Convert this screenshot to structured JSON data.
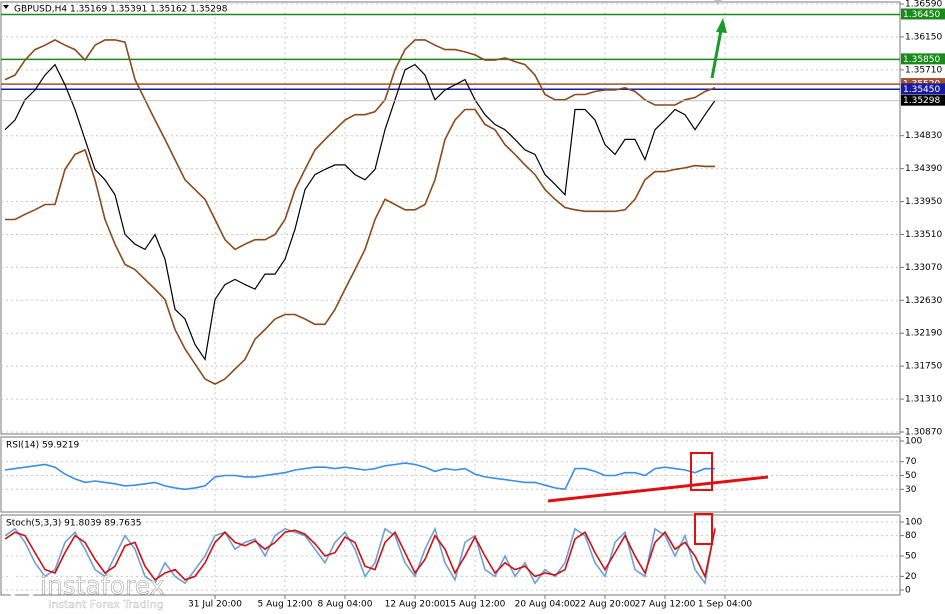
{
  "chart_data": [
    {
      "type": "line",
      "title": "GBPUSD,H4 1.35169 1.35391 1.35162 1.35298",
      "categories": [
        null,
        null,
        null,
        null,
        null,
        null,
        null,
        null,
        null,
        null,
        null,
        null,
        null,
        null,
        null,
        null,
        null,
        null,
        null,
        null,
        null,
        "31 Jul 20:00",
        null,
        null,
        null,
        null,
        null,
        null,
        "5 Aug 12:00",
        null,
        null,
        null,
        null,
        null,
        "8 Aug 04:00",
        null,
        null,
        null,
        null,
        null,
        null,
        "12 Aug 20:00",
        null,
        null,
        null,
        null,
        null,
        "15 Aug 12:00",
        null,
        null,
        null,
        null,
        null,
        null,
        "20 Aug 04:00",
        null,
        null,
        null,
        null,
        null,
        "22 Aug 20:00",
        null,
        null,
        null,
        null,
        null,
        "27 Aug 12:00",
        null,
        null,
        null,
        null,
        null,
        "1 Sep 04:00"
      ],
      "series": [
        {
          "color": "#000000",
          "values": [
            1.3491,
            1.3504,
            1.3531,
            1.3544,
            1.3564,
            1.3578,
            1.3551,
            1.3518,
            1.3478,
            1.3438,
            1.3424,
            1.3404,
            1.3351,
            1.3338,
            1.3331,
            1.3351,
            1.3318,
            1.3251,
            1.3238,
            1.3204,
            1.3184,
            1.3264,
            1.3284,
            1.3291,
            1.3284,
            1.3278,
            1.3298,
            1.3298,
            1.3318,
            1.3358,
            1.3411,
            1.3431,
            1.3438,
            1.3444,
            1.3444,
            1.3431,
            1.3424,
            1.3438,
            1.3491,
            1.3531,
            1.3571,
            1.3578,
            1.3564,
            1.3531,
            1.3544,
            1.3551,
            1.3558,
            1.3531,
            1.3511,
            1.3498,
            1.3491,
            1.3478,
            1.3464,
            1.3458,
            1.3431,
            1.3418,
            1.3404,
            1.3518,
            1.3518,
            1.3504,
            1.3471,
            1.3458,
            1.3478,
            1.3478,
            1.3451,
            1.3491,
            1.3504,
            1.3518,
            1.3511,
            1.3491,
            1.3511,
            1.353,
            null
          ]
        },
        {
          "color": "#8b4a1c",
          "values": [
            1.3558,
            1.3564,
            1.3584,
            1.3598,
            1.3604,
            1.3611,
            1.3604,
            1.3598,
            1.3584,
            1.3604,
            1.3611,
            1.3611,
            1.3608,
            1.3558,
            1.3531,
            1.3504,
            1.3478,
            1.3451,
            1.3424,
            1.3411,
            1.3398,
            1.3371,
            1.3344,
            1.3331,
            1.3338,
            1.3344,
            1.3344,
            1.3351,
            1.3371,
            1.3411,
            1.3438,
            1.3464,
            1.3478,
            1.3491,
            1.3504,
            1.3511,
            1.3511,
            1.3515,
            1.3531,
            1.3571,
            1.3598,
            1.3611,
            1.3611,
            1.3604,
            1.3598,
            1.3598,
            1.3595,
            1.3591,
            1.3584,
            1.3584,
            1.3587,
            1.3582,
            1.3578,
            1.3564,
            1.3538,
            1.3531,
            1.3531,
            1.3538,
            1.3538,
            1.3542,
            1.3544,
            1.3544,
            1.3547,
            1.3542,
            1.3531,
            1.3524,
            1.3524,
            1.3524,
            1.3531,
            1.3534,
            1.3542,
            1.3547,
            null
          ]
        },
        {
          "color": "#8b4a1c",
          "values": [
            1.3371,
            1.3371,
            1.3378,
            1.3384,
            1.3391,
            1.3391,
            1.3438,
            1.3458,
            1.3464,
            1.3424,
            1.3371,
            1.3338,
            1.3311,
            1.3304,
            1.3291,
            1.3278,
            1.3264,
            1.3224,
            1.3198,
            1.3178,
            1.3158,
            1.3151,
            1.3158,
            1.3171,
            1.3184,
            1.3211,
            1.3224,
            1.3238,
            1.3244,
            1.3244,
            1.3238,
            1.3231,
            1.3231,
            1.3251,
            1.3278,
            1.3304,
            1.3331,
            1.3371,
            1.3398,
            1.3391,
            1.3384,
            1.3384,
            1.3391,
            1.3424,
            1.3478,
            1.3504,
            1.3518,
            1.3518,
            1.3498,
            1.3491,
            1.3471,
            1.3458,
            1.3444,
            1.3431,
            1.3411,
            1.3398,
            1.3387,
            1.3384,
            1.3382,
            1.3382,
            1.3382,
            1.3382,
            1.3384,
            1.3398,
            1.3424,
            1.3435,
            1.3435,
            1.3438,
            1.344,
            1.3443,
            1.3442,
            1.3442,
            null
          ]
        }
      ],
      "ylim": [
        1.3087,
        1.3659
      ],
      "yticks": [
        {
          "value": 1.3659,
          "label": "1.36590"
        },
        {
          "value": 1.3615,
          "label": "1.36150"
        },
        {
          "value": 1.3571,
          "label": "1.35710"
        },
        {
          "value": 1.3483,
          "label": "1.34830"
        },
        {
          "value": 1.3439,
          "label": "1.34390"
        },
        {
          "value": 1.3395,
          "label": "1.33950"
        },
        {
          "value": 1.3351,
          "label": "1.33510"
        },
        {
          "value": 1.3307,
          "label": "1.33070"
        },
        {
          "value": 1.3263,
          "label": "1.32630"
        },
        {
          "value": 1.3219,
          "label": "1.32190"
        },
        {
          "value": 1.3175,
          "label": "1.31750"
        },
        {
          "value": 1.3131,
          "label": "1.31310"
        },
        {
          "value": 1.3087,
          "label": "1.30870"
        }
      ],
      "levels": [
        {
          "value": 1.3645,
          "label": "1.36450",
          "color": "#1a8a1a"
        },
        {
          "value": 1.3585,
          "label": "1.35850",
          "color": "#1a8a1a"
        },
        {
          "value": 1.3552,
          "label": "1.35520",
          "color": "#a0522d"
        },
        {
          "value": 1.3545,
          "label": "1.35450",
          "color": "#1a1aa0"
        }
      ],
      "last": {
        "value": 1.35298,
        "label": "1.35298",
        "color": "#000000"
      },
      "grid": true
    },
    {
      "type": "line",
      "title": "RSI(14) 59.9219",
      "series": [
        {
          "color": "#3a8ee6",
          "values": [
            58,
            60,
            62,
            64,
            66,
            62,
            52,
            45,
            40,
            42,
            40,
            38,
            35,
            36,
            38,
            40,
            35,
            32,
            30,
            32,
            35,
            48,
            50,
            50,
            48,
            48,
            50,
            52,
            54,
            58,
            60,
            62,
            62,
            60,
            62,
            60,
            58,
            60,
            64,
            66,
            68,
            66,
            62,
            56,
            60,
            58,
            60,
            52,
            48,
            46,
            44,
            42,
            40,
            40,
            36,
            32,
            30,
            60,
            60,
            56,
            50,
            50,
            54,
            54,
            50,
            60,
            62,
            60,
            58,
            54,
            60,
            59.9219,
            null
          ]
        }
      ],
      "ylim": [
        0,
        100
      ],
      "yticks": [
        30,
        50,
        70,
        100
      ],
      "grid": true
    },
    {
      "type": "line",
      "title": "Stoch(5,3,3) 91.8039 89.7635",
      "series": [
        {
          "color": "#6f9fd8",
          "values": [
            80,
            90,
            70,
            40,
            20,
            30,
            70,
            85,
            60,
            30,
            20,
            50,
            80,
            60,
            20,
            10,
            40,
            20,
            10,
            30,
            50,
            80,
            85,
            60,
            70,
            75,
            50,
            80,
            90,
            85,
            80,
            60,
            40,
            70,
            85,
            60,
            20,
            40,
            90,
            80,
            40,
            20,
            60,
            90,
            40,
            15,
            70,
            80,
            30,
            20,
            50,
            20,
            40,
            10,
            30,
            20,
            40,
            90,
            80,
            40,
            20,
            70,
            85,
            30,
            20,
            90,
            80,
            50,
            80,
            30,
            10,
            91.8039,
            null
          ]
        },
        {
          "color": "#d01010",
          "values": [
            75,
            85,
            80,
            55,
            30,
            25,
            55,
            80,
            70,
            45,
            25,
            35,
            65,
            70,
            35,
            15,
            25,
            30,
            15,
            20,
            40,
            70,
            85,
            70,
            65,
            72,
            60,
            70,
            85,
            88,
            82,
            68,
            50,
            55,
            78,
            70,
            35,
            30,
            70,
            85,
            55,
            25,
            45,
            80,
            60,
            25,
            50,
            78,
            50,
            25,
            40,
            30,
            35,
            20,
            25,
            22,
            30,
            75,
            85,
            55,
            30,
            55,
            80,
            50,
            25,
            70,
            85,
            60,
            70,
            50,
            20,
            89.7635,
            null
          ]
        }
      ],
      "ylim": [
        0,
        100
      ],
      "yticks": [
        0,
        20,
        50,
        80,
        100
      ],
      "grid": true
    }
  ],
  "watermark": {
    "brand": "instaforex",
    "tagline": "Instant Forex Trading"
  }
}
